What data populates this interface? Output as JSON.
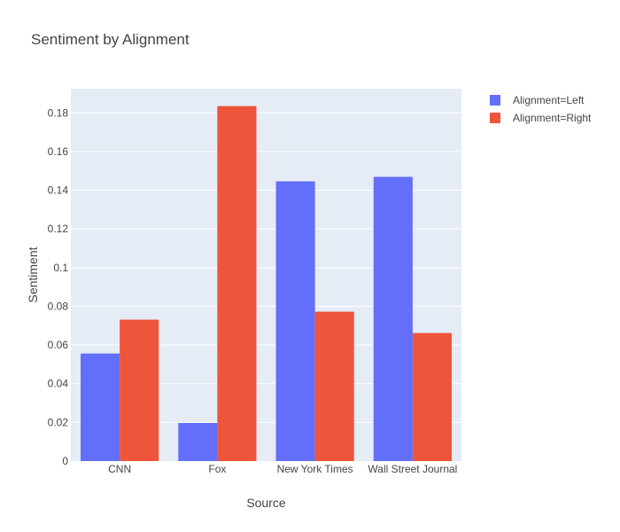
{
  "chart_data": {
    "type": "bar",
    "title": "Sentiment by Alignment",
    "xlabel": "Source",
    "ylabel": "Sentiment",
    "categories": [
      "CNN",
      "Fox",
      "New York Times",
      "Wall Street Journal"
    ],
    "series": [
      {
        "name": "Alignment=Left",
        "color": "#636efa",
        "values": [
          0.0556,
          0.0197,
          0.1446,
          0.1469
        ]
      },
      {
        "name": "Alignment=Right",
        "color": "#ef553b",
        "values": [
          0.0731,
          0.1835,
          0.0772,
          0.0662
        ]
      }
    ],
    "ylim": [
      0,
      0.1925
    ],
    "yticks": [
      0,
      0.02,
      0.04,
      0.06,
      0.08,
      0.1,
      0.12,
      0.14,
      0.16,
      0.18
    ],
    "ytick_labels": [
      "0",
      "0.02",
      "0.04",
      "0.06",
      "0.08",
      "0.1",
      "0.12",
      "0.14",
      "0.16",
      "0.18"
    ],
    "grid": true,
    "plot_background": "#e5ecf6",
    "legend_position": "top-right"
  }
}
